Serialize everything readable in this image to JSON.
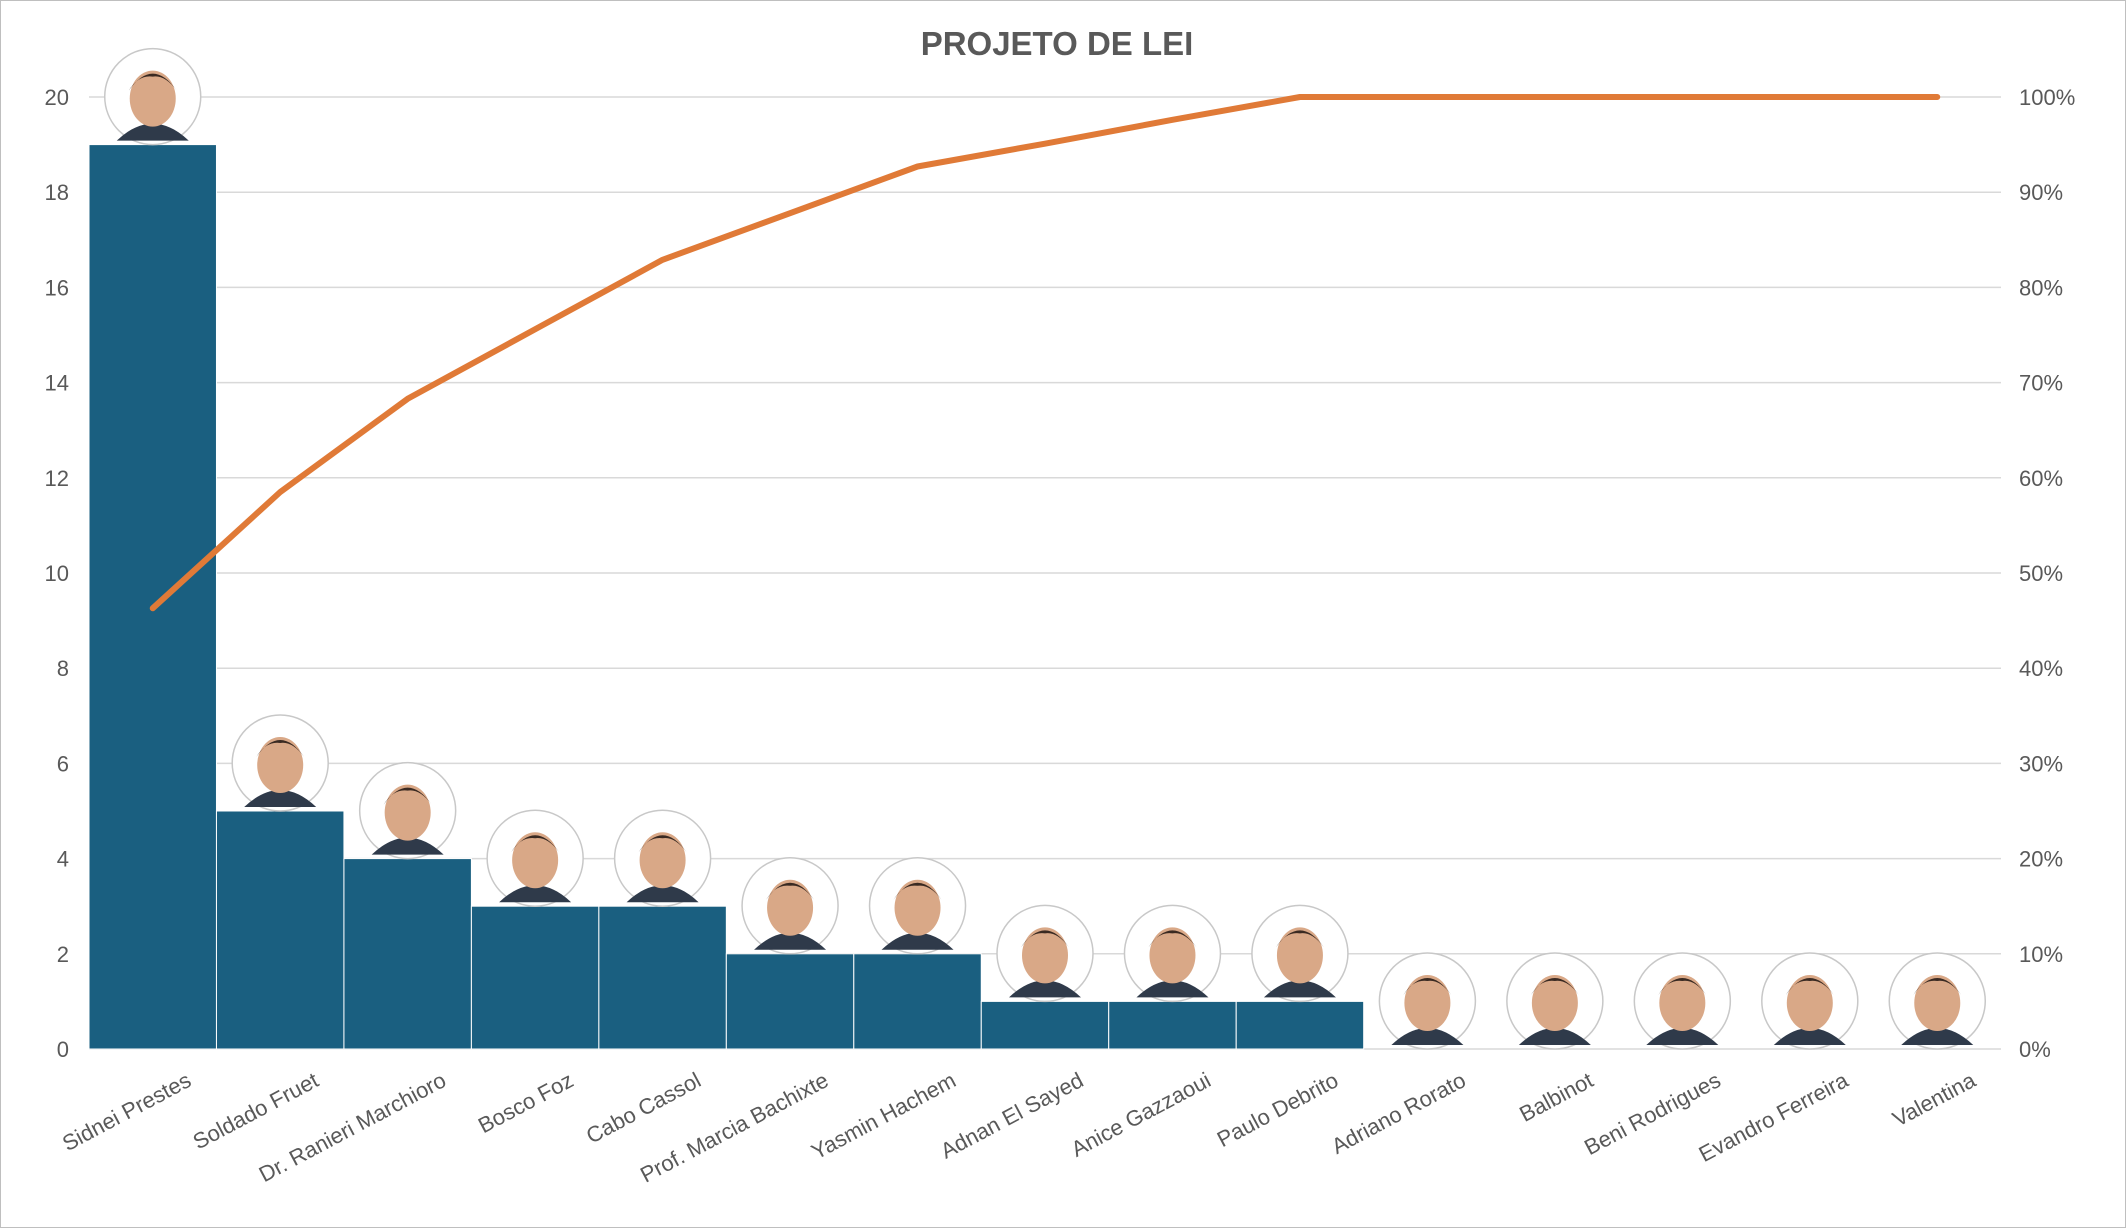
{
  "chart_data": {
    "type": "bar",
    "title": "PROJETO DE LEI",
    "categories": [
      "Sidnei Prestes",
      "Soldado Fruet",
      "Dr. Ranieri Marchioro",
      "Bosco Foz",
      "Cabo Cassol",
      "Prof. Marcia Bachixte",
      "Yasmin Hachem",
      "Adnan El Sayed",
      "Anice Gazzaoui",
      "Paulo Debrito",
      "Adriano Rorato",
      "Balbinot",
      "Beni Rodrigues",
      "Evandro Ferreira",
      "Valentina"
    ],
    "series": [
      {
        "type": "bar",
        "axis": "left",
        "values": [
          19,
          5,
          4,
          3,
          3,
          2,
          2,
          1,
          1,
          1,
          0,
          0,
          0,
          0,
          0
        ]
      },
      {
        "type": "line",
        "axis": "right",
        "values": [
          46.3,
          58.5,
          68.3,
          75.6,
          82.9,
          87.8,
          92.7,
          95.1,
          97.6,
          100,
          100,
          100,
          100,
          100,
          100
        ]
      }
    ],
    "y_left": {
      "min": 0,
      "max": 20,
      "ticks": [
        "0",
        "2",
        "4",
        "6",
        "8",
        "10",
        "12",
        "14",
        "16",
        "18",
        "20"
      ]
    },
    "y_right": {
      "min": 0,
      "max": 100,
      "ticks": [
        "0%",
        "10%",
        "20%",
        "30%",
        "40%",
        "50%",
        "60%",
        "70%",
        "80%",
        "90%",
        "100%"
      ]
    },
    "grid": true,
    "colors": {
      "bar": "#1a5f80",
      "line": "#e07a37",
      "grid": "#d9d9d9",
      "text": "#595959"
    },
    "avatars": "portrait photo above each category"
  }
}
